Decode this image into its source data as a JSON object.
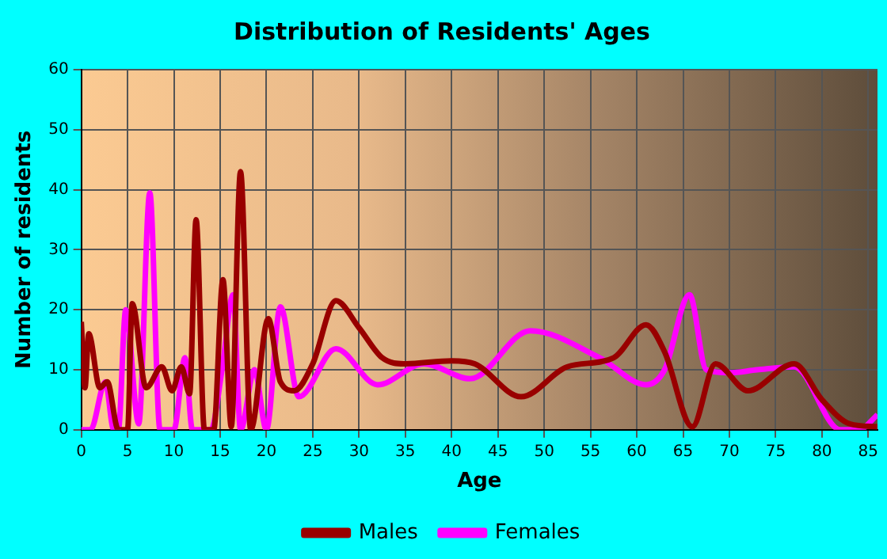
{
  "chart_data": {
    "type": "line",
    "title": "Distribution of Residents' Ages",
    "xlabel": "Age",
    "ylabel": "Number of residents",
    "xlim": [
      0,
      86
    ],
    "xticks": [
      0,
      5,
      10,
      15,
      20,
      25,
      30,
      35,
      40,
      45,
      50,
      55,
      60,
      65,
      70,
      75,
      80,
      85
    ],
    "ylim": [
      0,
      60
    ],
    "yticks": [
      0,
      10,
      20,
      30,
      40,
      50,
      60
    ],
    "grid": true,
    "legend": "bottom",
    "marker": "none",
    "line_style": "solid",
    "series": [
      {
        "name": "Males",
        "color": "#990000",
        "x": [
          0,
          0.4,
          0.8,
          2,
          2.8,
          4,
          5,
          5.5,
          7,
          8.7,
          9.8,
          10.8,
          11.7,
          12.4,
          13.3,
          14.3,
          15.3,
          16.2,
          17.2,
          18.3,
          20.2,
          21.5,
          23,
          25,
          27.5,
          30,
          32.5,
          35,
          40,
          42.5,
          47.5,
          52.5,
          57.5,
          61,
          63,
          66,
          68.5,
          72,
          77,
          80,
          83,
          86
        ],
        "values": [
          18,
          7,
          16,
          7,
          8,
          0,
          0,
          21,
          7,
          10.5,
          6.5,
          10.5,
          6,
          35,
          0,
          0,
          25,
          0.5,
          43,
          0,
          18.5,
          8,
          6.5,
          11,
          21.5,
          17,
          12,
          11,
          11.5,
          11,
          5.5,
          10.5,
          12,
          17.5,
          13,
          0.5,
          11,
          6.5,
          11,
          5,
          1,
          0.5
        ]
      },
      {
        "name": "Females",
        "color": "#ff00ff",
        "x": [
          0,
          0.5,
          1,
          2.6,
          3.5,
          4,
          4.8,
          6.2,
          7.4,
          8.5,
          10,
          11.2,
          12,
          14,
          15.2,
          16.4,
          17.2,
          18.7,
          20,
          21.5,
          23.5,
          27.5,
          32,
          37,
          42,
          48.5,
          56,
          61,
          63,
          65.7,
          67.5,
          70,
          73,
          77,
          82,
          84,
          86
        ],
        "values": [
          0,
          0,
          0,
          8,
          0,
          0,
          20,
          1,
          39.5,
          0,
          0,
          12,
          0,
          0,
          10,
          22.5,
          0,
          10,
          0,
          20.5,
          5.5,
          13.5,
          7.5,
          11,
          8.5,
          16.5,
          12,
          7.5,
          10,
          22.5,
          10,
          9.5,
          10,
          10.5,
          0,
          0,
          2.5
        ]
      }
    ]
  }
}
